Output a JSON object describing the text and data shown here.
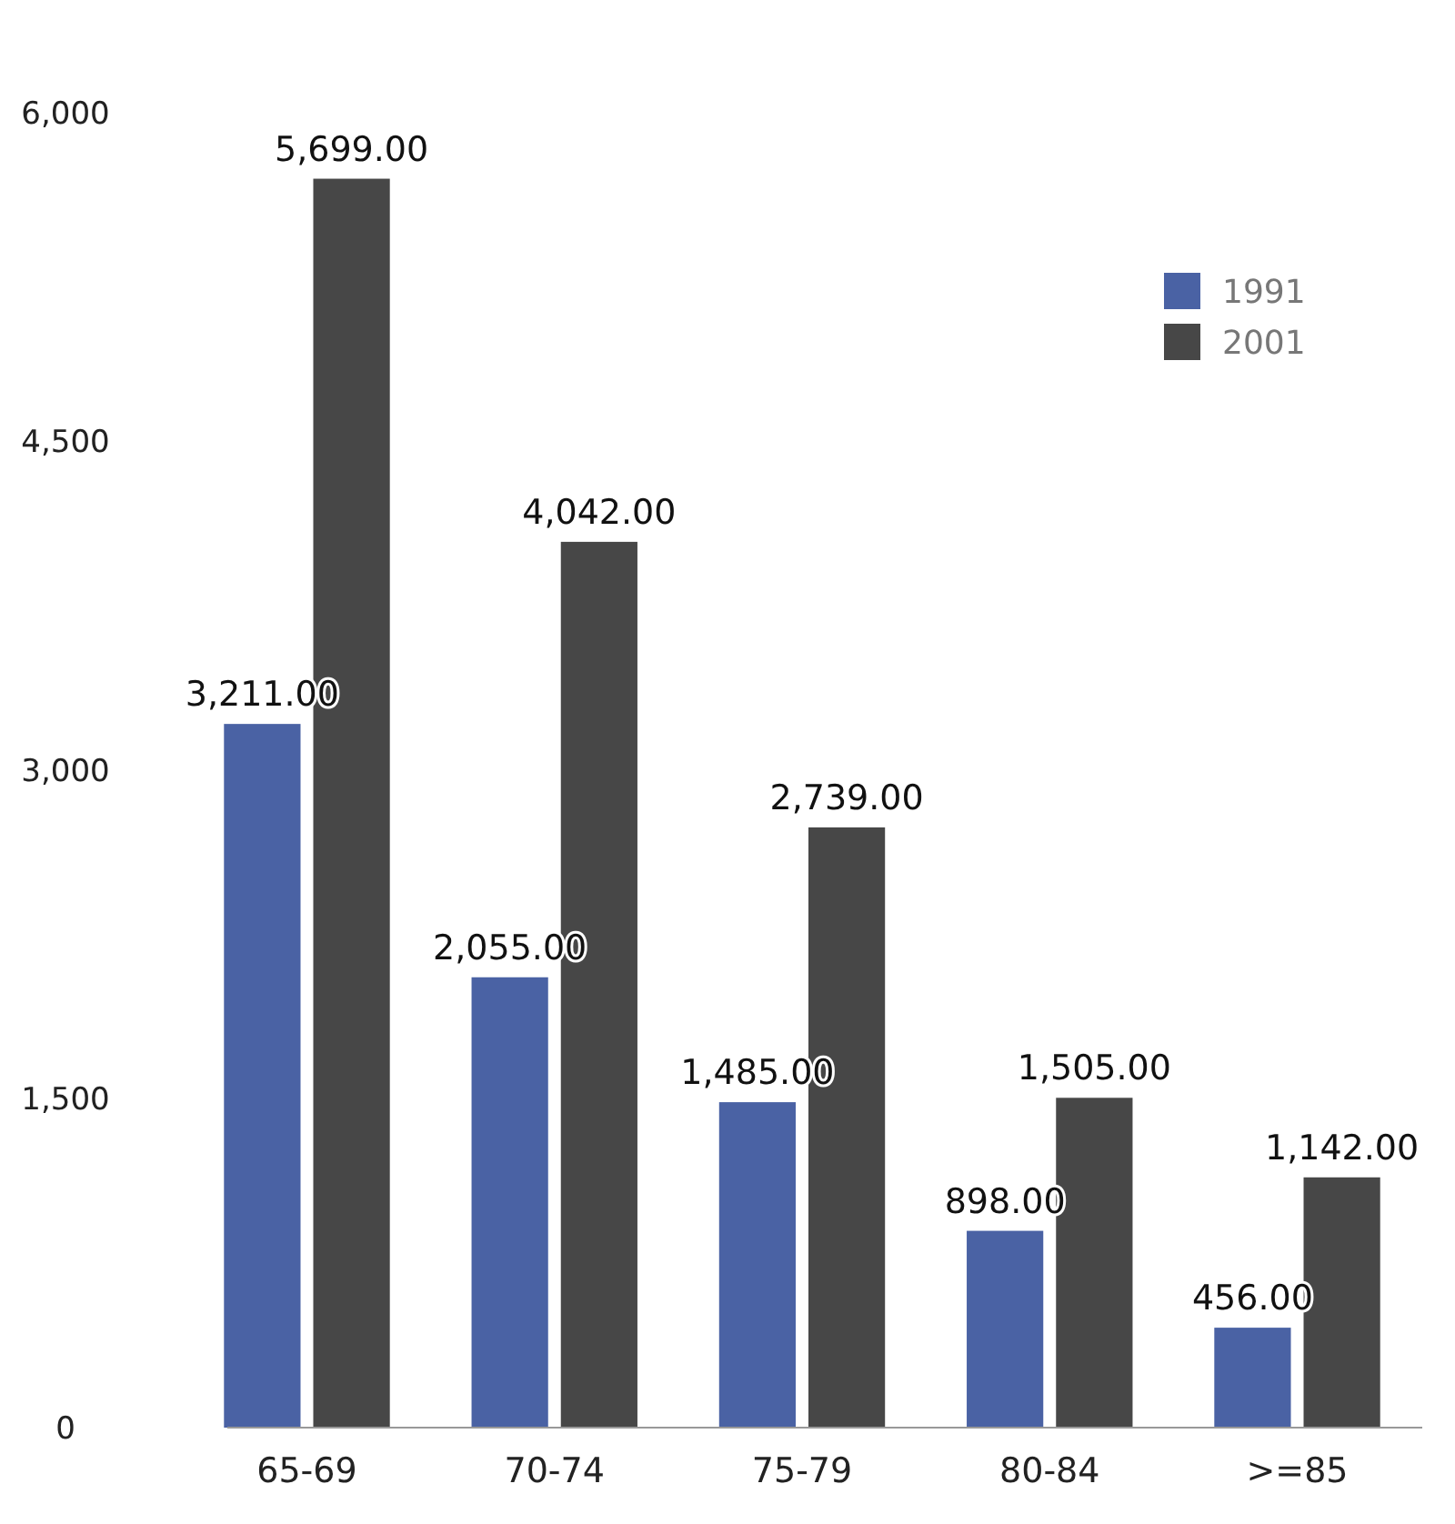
{
  "chart_data": {
    "type": "bar",
    "categories": [
      "65-69",
      "70-74",
      "75-79",
      "80-84",
      ">=85"
    ],
    "series": [
      {
        "name": "1991",
        "color": "#4a62a4",
        "values": [
          3211,
          2055,
          1485,
          898,
          456
        ],
        "value_labels": [
          "3,211.00",
          "2,055.00",
          "1,485.00",
          "898.00",
          "456.00"
        ]
      },
      {
        "name": "2001",
        "color": "#474747",
        "values": [
          5699,
          4042,
          2739,
          1505,
          1142
        ],
        "value_labels": [
          "5,699.00",
          "4,042.00",
          "2,739.00",
          "1,505.00",
          "1,142.00"
        ]
      }
    ],
    "ylim": [
      0,
      6000
    ],
    "yticks": [
      {
        "value": 0,
        "label": "0"
      },
      {
        "value": 1500,
        "label": "1,500"
      },
      {
        "value": 3000,
        "label": "3,000"
      },
      {
        "value": 4500,
        "label": "4,500"
      },
      {
        "value": 6000,
        "label": "6,000"
      }
    ],
    "grid": false,
    "legend": "top right"
  }
}
